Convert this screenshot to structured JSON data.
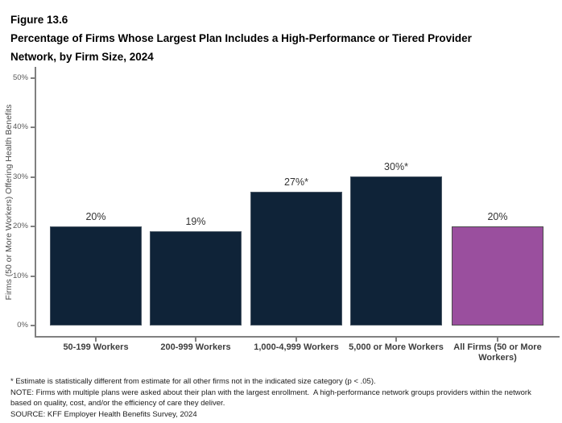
{
  "figure": {
    "label": "Figure 13.6",
    "title_lines": [
      "Percentage of Firms Whose Largest Plan Includes a High-Performance or Tiered Provider",
      "Network, by Firm Size, 2024"
    ]
  },
  "chart_data": {
    "type": "bar",
    "title": "Percentage of Firms Whose Largest Plan Includes a High-Performance or Tiered Provider Network, by Firm Size, 2024",
    "categories": [
      "50-199 Workers",
      "200-999 Workers",
      "1,000-4,999 Workers",
      "5,000 or More Workers",
      "All Firms (50 or More Workers)"
    ],
    "values": [
      20,
      19,
      27,
      30,
      20
    ],
    "value_labels": [
      "20%",
      "19%",
      "27%*",
      "30%*",
      "20%"
    ],
    "bar_colors": [
      "#0f2338",
      "#0f2338",
      "#0f2338",
      "#0f2338",
      "#9a4f9e"
    ],
    "bar_border_colors": [
      "#4b5866",
      "#4b5866",
      "#4b5866",
      "#4b5866",
      "#4a4a4a"
    ],
    "xlabel": "",
    "ylabel": "Firms (50 or More Workers) Offering Health Benefits",
    "ylim": [
      0,
      50
    ],
    "ytick_values": [
      0,
      10,
      20,
      30,
      40,
      50
    ],
    "ytick_labels": [
      "0%",
      "10%",
      "20%",
      "30%",
      "40%",
      "50%"
    ],
    "grid": false,
    "legend_position": "none"
  },
  "footnotes": {
    "asterisk": "* Estimate is statistically different from estimate for all other firms not in the indicated size category (p < .05).",
    "note": "NOTE: Firms with multiple plans were asked about their plan with the largest enrollment.  A high-performance network groups providers within the network based on quality, cost, and/or the efficiency of care they deliver.",
    "source": "SOURCE: KFF Employer Health Benefits Survey, 2024"
  },
  "colors": {
    "bar_primary": "#0f2338",
    "bar_highlight": "#9a4f9e",
    "axis_line": "#808080",
    "tick_label_color": "#595959",
    "category_label_color": "#3d3d3d",
    "value_label_color": "#333333",
    "title_color": "#000000"
  }
}
